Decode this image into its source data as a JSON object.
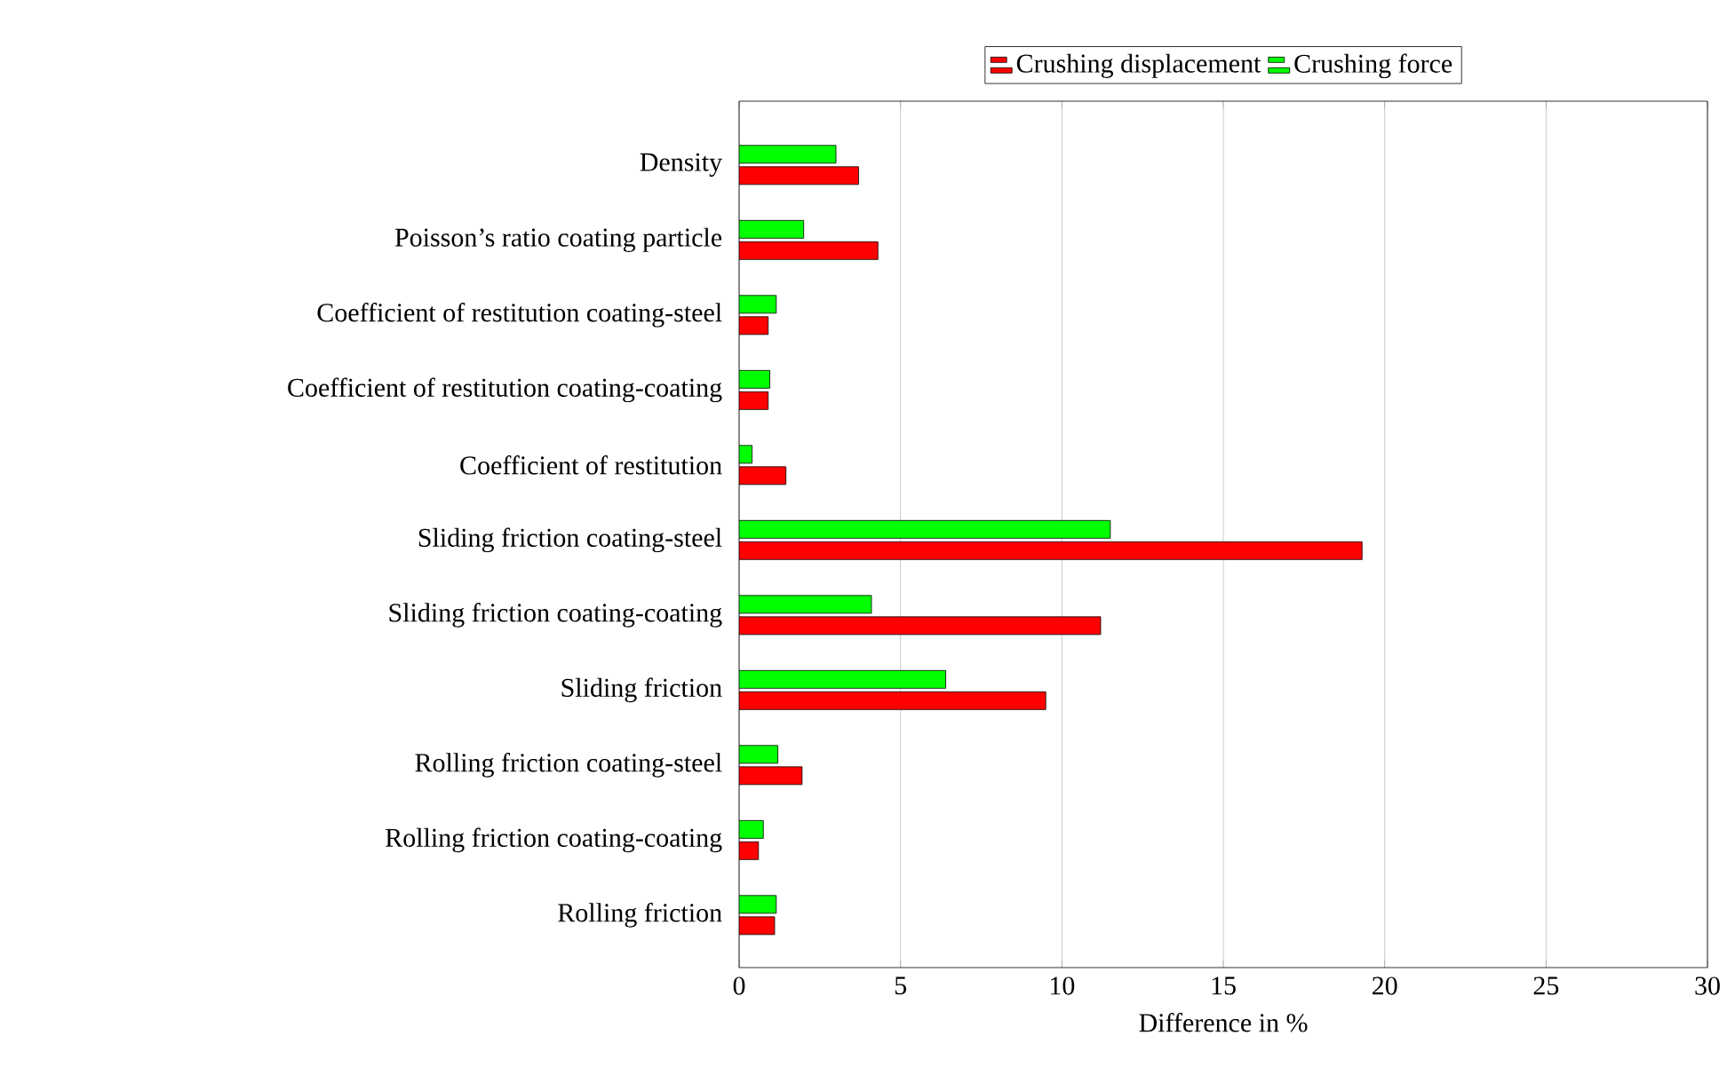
{
  "chart_data": {
    "type": "bar",
    "orientation": "horizontal",
    "xlabel": "Difference in %",
    "categories": [
      "Density",
      "Poisson’s ratio coating particle",
      "Coefficient of restitution coating-steel",
      "Coefficient of restitution coating-coating",
      "Coefficient of restitution",
      "Sliding friction coating-steel",
      "Sliding friction coating-coating",
      "Sliding friction",
      "Rolling friction coating-steel",
      "Rolling friction coating-coating",
      "Rolling friction"
    ],
    "series": [
      {
        "name": "Crushing displacement",
        "color": "#ff0000",
        "values": [
          3.7,
          4.3,
          0.9,
          0.9,
          1.45,
          19.3,
          11.2,
          9.5,
          1.95,
          0.6,
          1.1
        ]
      },
      {
        "name": "Crushing force",
        "color": "#00ff00",
        "values": [
          3.0,
          2.0,
          1.15,
          0.95,
          0.4,
          11.5,
          4.1,
          6.4,
          1.2,
          0.75,
          1.15
        ]
      }
    ],
    "xlim": [
      0,
      30
    ],
    "xticks": [
      0,
      5,
      10,
      15,
      20,
      25,
      30
    ],
    "grid": "x",
    "legend": "top"
  }
}
